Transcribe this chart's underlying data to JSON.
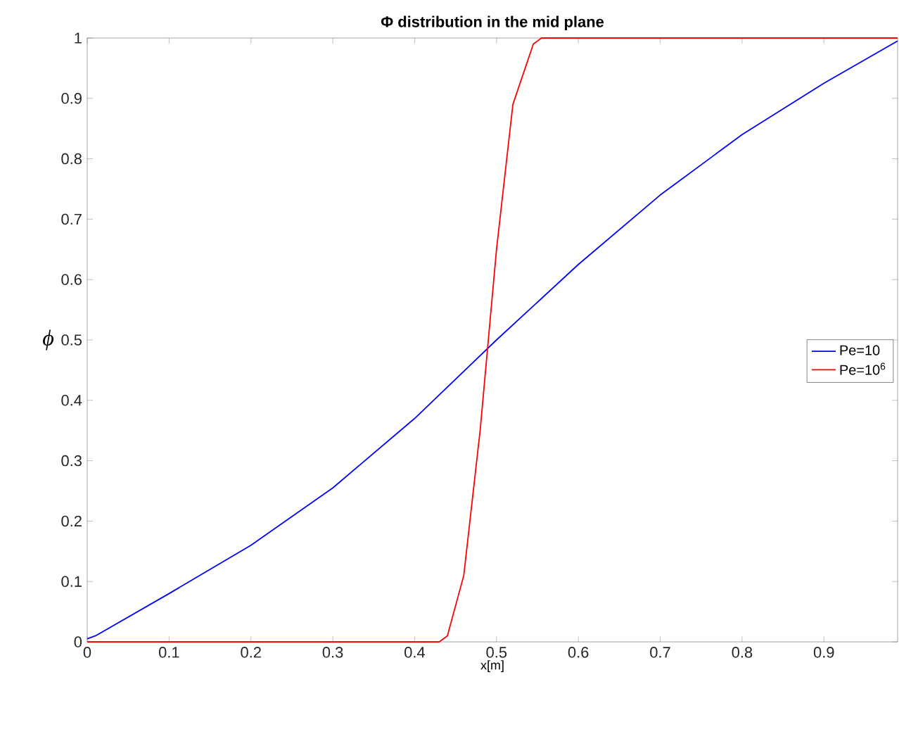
{
  "chart_data": {
    "type": "line",
    "title": "**Φ distribution in the mid plane**",
    "xlabel": "x[m]",
    "ylabel": "ϕ",
    "xlim": [
      0,
      0.99
    ],
    "ylim": [
      0,
      1
    ],
    "xticks": [
      0,
      0.1,
      0.2,
      0.3,
      0.4,
      0.5,
      0.6,
      0.7,
      0.8,
      0.9
    ],
    "yticks": [
      0,
      0.1,
      0.2,
      0.3,
      0.4,
      0.5,
      0.6,
      0.7,
      0.8,
      0.9,
      1
    ],
    "series": [
      {
        "name": "Pe=10",
        "color": "#0000ff",
        "x": [
          0,
          0.01,
          0.1,
          0.2,
          0.3,
          0.4,
          0.5,
          0.6,
          0.7,
          0.8,
          0.9,
          0.99
        ],
        "values": [
          0.005,
          0.01,
          0.08,
          0.16,
          0.255,
          0.37,
          0.5,
          0.625,
          0.74,
          0.84,
          0.925,
          0.995
        ]
      },
      {
        "name": "Pe=10$^{6}$",
        "color": "#ff0000",
        "x": [
          0,
          0.43,
          0.44,
          0.46,
          0.48,
          0.5,
          0.52,
          0.545,
          0.555,
          0.99
        ],
        "values": [
          0,
          0,
          0.01,
          0.11,
          0.35,
          0.65,
          0.89,
          0.99,
          1,
          1
        ]
      }
    ],
    "legend": "right",
    "grid": false,
    "marker": "none",
    "line_style": "solid"
  }
}
